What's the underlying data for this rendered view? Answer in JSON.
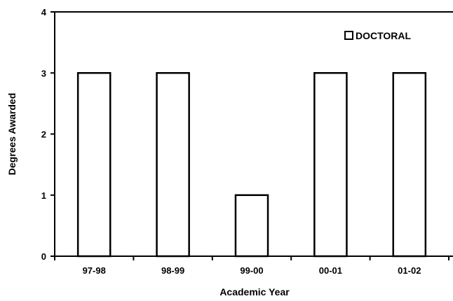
{
  "chart_data": {
    "type": "bar",
    "title": "",
    "xlabel": "Academic Year",
    "ylabel": "Degrees Awarded",
    "categories": [
      "97-98",
      "98-99",
      "99-00",
      "00-01",
      "01-02"
    ],
    "series": [
      {
        "name": "DOCTORAL",
        "values": [
          3,
          3,
          1,
          3,
          3
        ]
      }
    ],
    "ylim": [
      0,
      4
    ],
    "yticks": [
      0,
      1,
      2,
      3,
      4
    ],
    "grid": false,
    "legend_position": "top-right",
    "colors": {
      "bar_fill": "#ffffff",
      "bar_stroke": "#000000",
      "axis": "#000000"
    }
  }
}
